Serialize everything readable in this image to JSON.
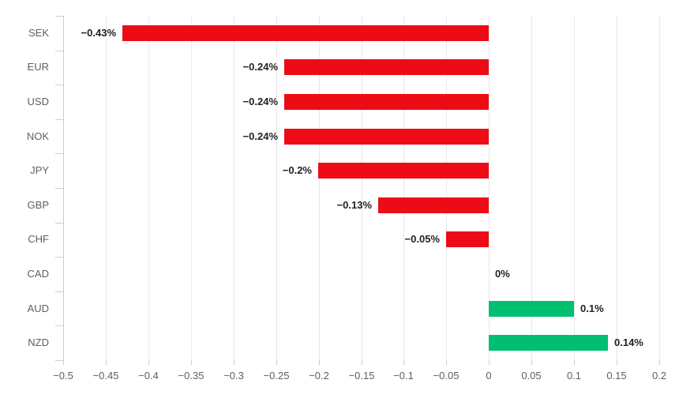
{
  "chart_data": {
    "type": "bar",
    "orientation": "horizontal",
    "title": "",
    "xlabel": "",
    "ylabel": "",
    "categories": [
      "SEK",
      "EUR",
      "USD",
      "NOK",
      "JPY",
      "GBP",
      "CHF",
      "CAD",
      "AUD",
      "NZD"
    ],
    "values": [
      -0.43,
      -0.24,
      -0.24,
      -0.24,
      -0.2,
      -0.13,
      -0.05,
      0,
      0.1,
      0.14
    ],
    "value_labels": [
      "−0.43%",
      "−0.24%",
      "−0.24%",
      "−0.24%",
      "−0.2%",
      "−0.13%",
      "−0.05%",
      "0%",
      "0.1%",
      "0.14%"
    ],
    "xlim": [
      -0.5,
      0.2
    ],
    "x_tick_step": 0.05,
    "x_tick_values": [
      -0.5,
      -0.45,
      -0.4,
      -0.35,
      -0.3,
      -0.25,
      -0.2,
      -0.15,
      -0.1,
      -0.05,
      0,
      0.05,
      0.1,
      0.15,
      0.2
    ],
    "x_tick_labels": [
      "−0.5",
      "−0.45",
      "−0.4",
      "−0.35",
      "−0.3",
      "−0.25",
      "−0.2",
      "−0.15",
      "−0.1",
      "−0.05",
      "0",
      "0.05",
      "0.1",
      "0.15",
      "0.2"
    ],
    "grid": "vertical-on",
    "legend": "none",
    "colors": {
      "negative_bar": "#ed0c16",
      "positive_bar": "#00bf70",
      "gridline": "#e8e8ee",
      "axis_line": "#ccccd9",
      "category_label": "#5f5f5f",
      "tick_label": "#5f5f5f",
      "value_label": "#222222",
      "background": "#ffffff"
    }
  }
}
